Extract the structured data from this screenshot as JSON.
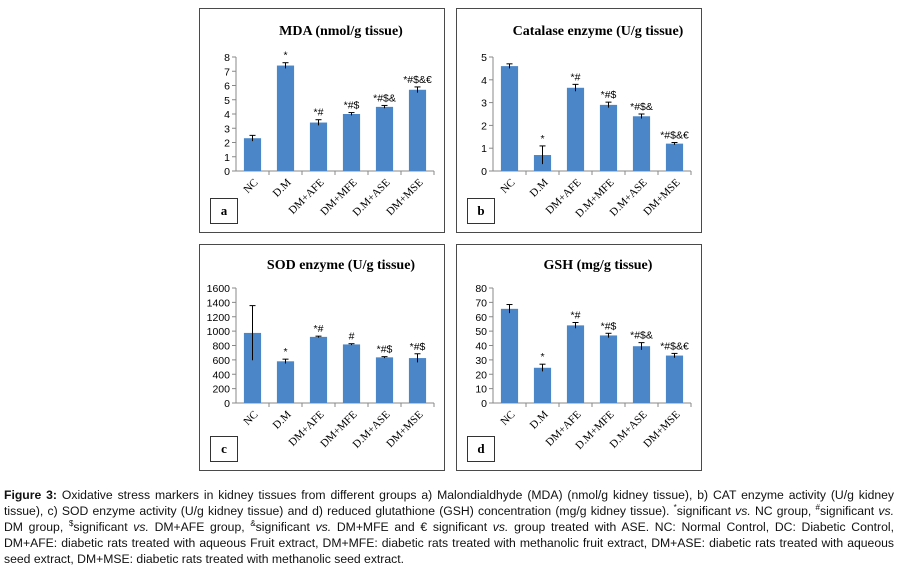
{
  "chart_data": [
    {
      "type": "bar",
      "panel_label": "a",
      "title": "MDA (nmol/g tissue)",
      "categories": [
        "NC",
        "D.M",
        "DM+AFE",
        "DM+MFE",
        "D.M+ASE",
        "DM+MSE"
      ],
      "values": [
        2.3,
        7.4,
        3.4,
        4.0,
        4.5,
        5.7
      ],
      "errors": [
        0.2,
        0.2,
        0.2,
        0.1,
        0.1,
        0.2
      ],
      "annotations": [
        "",
        "*",
        "*#",
        "*#$",
        "*#$&",
        "*#$&€"
      ],
      "yticks": [
        "0",
        "1",
        "2",
        "3",
        "4",
        "5",
        "6",
        "7",
        "8"
      ],
      "ylim": [
        0,
        8
      ],
      "color": "#4a86c8"
    },
    {
      "type": "bar",
      "panel_label": "b",
      "title": "Catalase enzyme (U/g tissue)",
      "categories": [
        "NC",
        "D.M",
        "DM+AFE",
        "D.M+MFE",
        "D.M+ASE",
        "DM+MSE"
      ],
      "values": [
        4.6,
        0.7,
        3.65,
        2.9,
        2.4,
        1.2
      ],
      "errors": [
        0.1,
        0.4,
        0.15,
        0.12,
        0.1,
        0.05
      ],
      "annotations": [
        "",
        "*",
        "*#",
        "*#$",
        "*#$&",
        "*#$&€"
      ],
      "yticks": [
        "0",
        "1",
        "2",
        "3",
        "4",
        "5"
      ],
      "ylim": [
        0,
        5
      ],
      "color": "#4a86c8"
    },
    {
      "type": "bar",
      "panel_label": "c",
      "title": "SOD enzyme (U/g tissue)",
      "categories": [
        "NC",
        "D.M",
        "DM+AFE",
        "DM+MFE",
        "D.M+ASE",
        "DM+MSE"
      ],
      "values": [
        975,
        580,
        920,
        815,
        635,
        625
      ],
      "errors": [
        380,
        30,
        10,
        10,
        10,
        60
      ],
      "annotations": [
        "",
        "*",
        "*#",
        "#",
        "*#$",
        "*#$"
      ],
      "yticks": [
        "0",
        "200",
        "400",
        "600",
        "800",
        "1000",
        "1200",
        "1400",
        "1600"
      ],
      "ylim": [
        0,
        1600
      ],
      "color": "#4a86c8"
    },
    {
      "type": "bar",
      "panel_label": "d",
      "title": "GSH (mg/g tissue)",
      "categories": [
        "NC",
        "D.M",
        "DM+AFE",
        "D.M+MFE",
        "D.M+ASE",
        "DM+MSE"
      ],
      "values": [
        65.5,
        24.5,
        54,
        47,
        39.5,
        33
      ],
      "errors": [
        3,
        2.5,
        2,
        1.5,
        2.5,
        1.5
      ],
      "annotations": [
        "",
        "*",
        "*#",
        "*#$",
        "*#$&",
        "*#$&€"
      ],
      "yticks": [
        "0",
        "10",
        "20",
        "30",
        "40",
        "50",
        "60",
        "70",
        "80"
      ],
      "ylim": [
        0,
        80
      ],
      "color": "#4a86c8"
    }
  ],
  "caption": {
    "label": "Figure 3:",
    "text_1": " Oxidative stress markers in kidney tissues from different groups a) Malondialdhyde (MDA) (nmol/g kidney tissue), b) CAT enzyme activity (U/g kidney tissue), c) SOD enzyme activity (U/g kidney tissue) and d) reduced glutathione (GSH) concentration (mg/g kidney tissue). ",
    "sym_star": "*",
    "text_2": "significant ",
    "vs_1": "vs.",
    "text_3": " NC group, ",
    "sym_hash": "#",
    "text_4": "significant ",
    "vs_2": "vs.",
    "text_5": " DM group, ",
    "sym_dollar": "$",
    "text_6": "significant ",
    "vs_3": "vs.",
    "text_7": " DM+AFE group, ",
    "sym_amp": "&",
    "text_8": "significant ",
    "vs_4": "vs.",
    "text_9": " DM+MFE and € significant ",
    "vs_5": "vs.",
    "text_10": " group treated with ASE. NC: Normal Control, DC: Diabetic Control, DM+AFE: diabetic rats treated with aqueous Fruit extract, DM+MFE: diabetic rats treated with methanolic fruit extract, DM+ASE: diabetic rats treated with aqueous seed extract, DM+MSE: diabetic rats treated with methanolic seed extract."
  }
}
